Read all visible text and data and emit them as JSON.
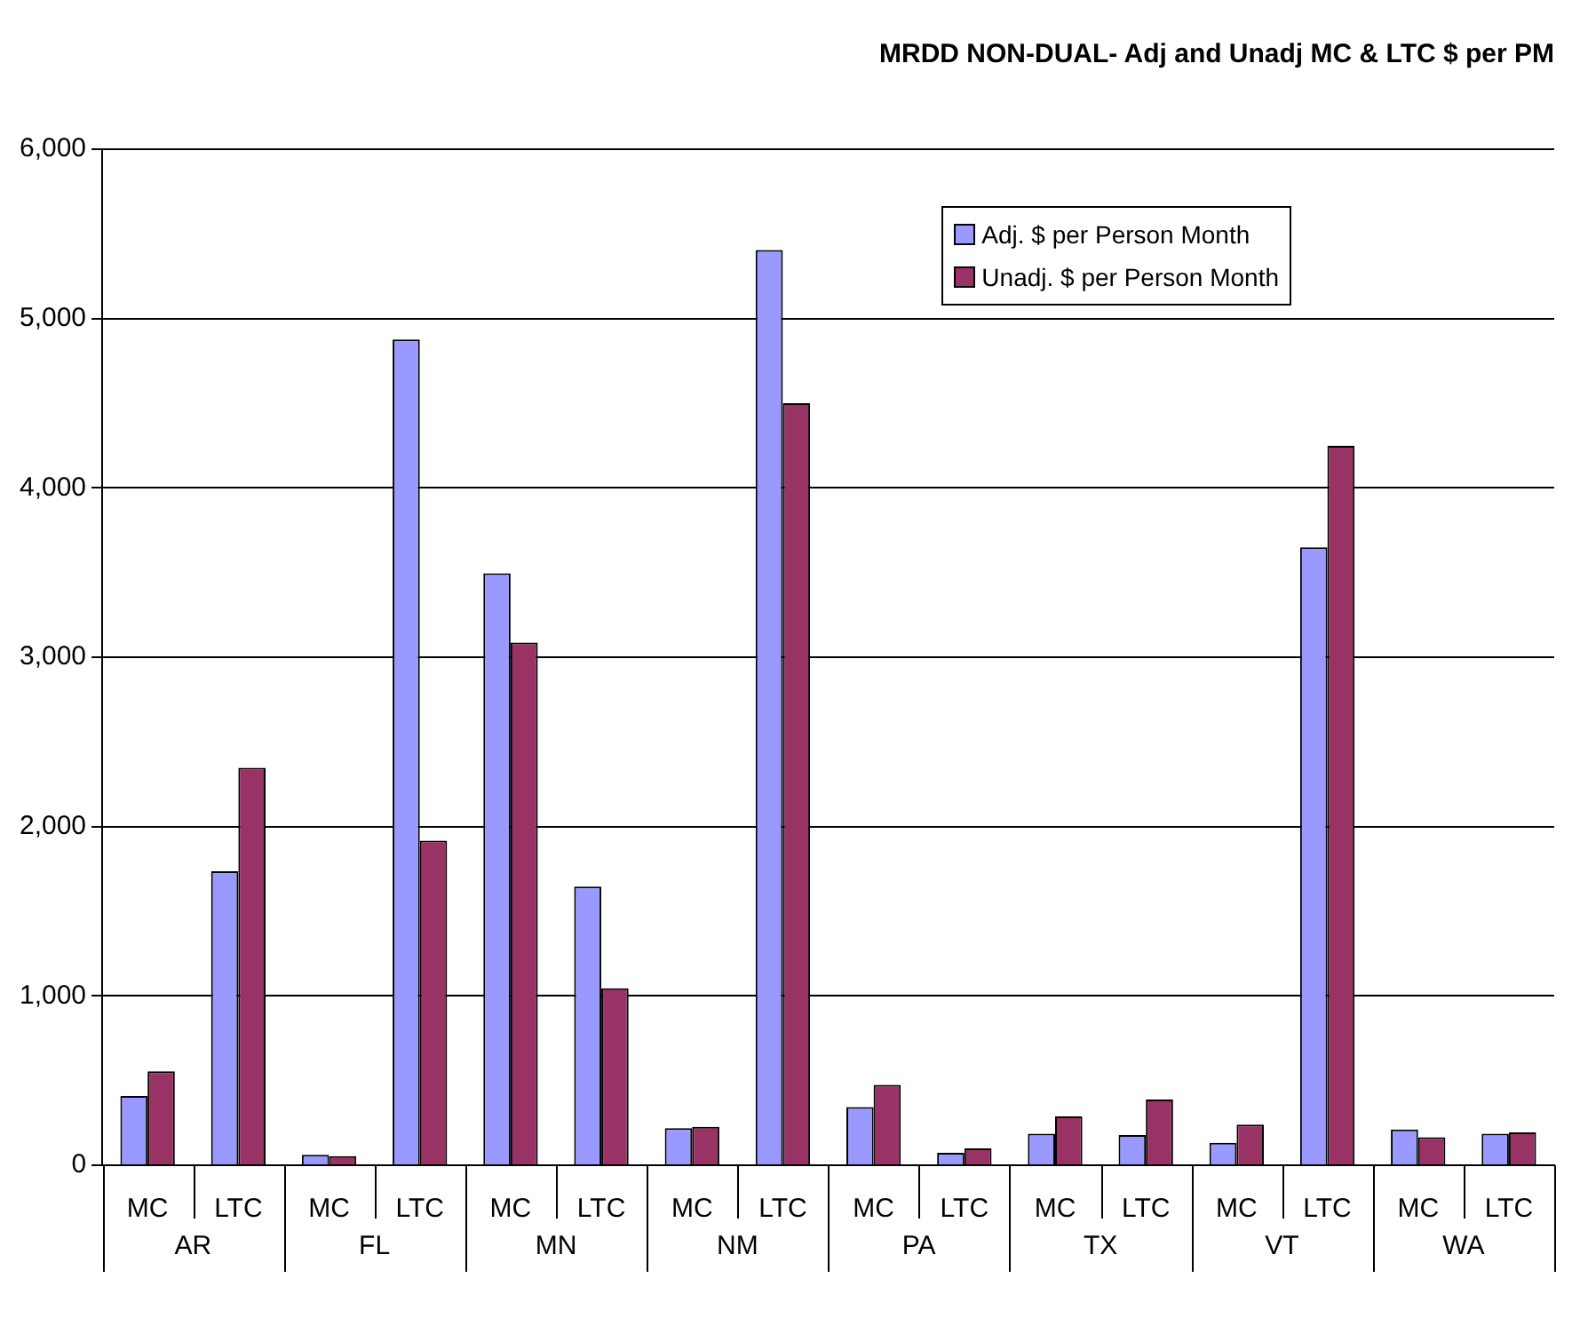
{
  "chart_data": {
    "type": "bar",
    "title": "MRDD NON-DUAL- Adj and Unadj MC & LTC $ per PM",
    "categories": [
      "MC",
      "LTC",
      "MC",
      "LTC",
      "MC",
      "LTC",
      "MC",
      "LTC",
      "MC",
      "LTC",
      "MC",
      "LTC",
      "MC",
      "LTC",
      "MC",
      "LTC"
    ],
    "annotations": [
      "AR",
      "FL",
      "MN",
      "NM",
      "PA",
      "TX",
      "VT",
      "WA"
    ],
    "series": [
      {
        "name": "Adj. $ per Person Month",
        "color": "#9999ff",
        "values": [
          409,
          1736,
          62,
          4876,
          3496,
          1645,
          219,
          5405,
          343,
          74,
          186,
          178,
          132,
          3649,
          211,
          186
        ]
      },
      {
        "name": "Unadj. $ per Person Month",
        "color": "#993366",
        "values": [
          554,
          2347,
          54,
          1917,
          3087,
          1045,
          227,
          4500,
          475,
          99,
          289,
          388,
          240,
          4248,
          165,
          194
        ]
      }
    ],
    "ylim": [
      0,
      6000
    ],
    "yticks": [
      {
        "value": 0,
        "label": "0"
      },
      {
        "value": 1000,
        "label": "1,000"
      },
      {
        "value": 2000,
        "label": "2,000"
      },
      {
        "value": 3000,
        "label": "3,000"
      },
      {
        "value": 4000,
        "label": "4,000"
      },
      {
        "value": 5000,
        "label": "5,000"
      },
      {
        "value": 6000,
        "label": "6,000"
      }
    ],
    "grid": "y",
    "legend": "top right"
  }
}
